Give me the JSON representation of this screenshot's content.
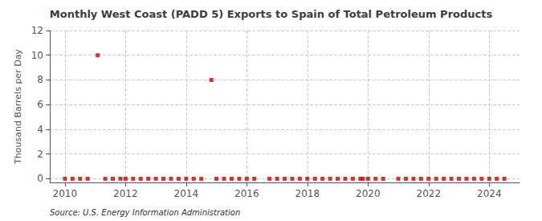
{
  "chart_data": {
    "type": "scatter",
    "title": "Monthly West Coast (PADD 5) Exports to Spain of Total Petroleum Products",
    "ylabel": "Thousand Barrels per Day",
    "source": "Source: U.S. Energy Information Administration",
    "color": "#cc0000",
    "marker": "square",
    "grid": true,
    "xlim": [
      2009.5,
      2025.0
    ],
    "ylim": [
      -0.3,
      12
    ],
    "xticks": [
      2010,
      2012,
      2014,
      2016,
      2018,
      2020,
      2022,
      2024
    ],
    "yticks": [
      0,
      2,
      4,
      6,
      8,
      10,
      12
    ],
    "x": [
      2011.08,
      2014.83,
      2010.0,
      2010.25,
      2010.5,
      2010.75,
      2011.33,
      2011.58,
      2011.83,
      2012.0,
      2012.25,
      2012.5,
      2012.75,
      2013.0,
      2013.25,
      2013.5,
      2013.75,
      2014.0,
      2014.25,
      2014.5,
      2015.0,
      2015.25,
      2015.5,
      2015.75,
      2016.0,
      2016.25,
      2016.75,
      2017.0,
      2017.25,
      2017.5,
      2017.75,
      2018.0,
      2018.25,
      2018.5,
      2018.75,
      2019.0,
      2019.25,
      2019.5,
      2019.75,
      2019.83,
      2020.0,
      2020.25,
      2020.5,
      2021.0,
      2021.25,
      2021.5,
      2021.75,
      2022.0,
      2022.25,
      2022.5,
      2022.75,
      2023.0,
      2023.25,
      2023.5,
      2023.75,
      2024.0,
      2024.25,
      2024.5
    ],
    "values": [
      10.0,
      8.0,
      0.0,
      0.0,
      0.0,
      0.0,
      0.0,
      0.0,
      0.0,
      0.0,
      0.0,
      0.0,
      0.0,
      0.0,
      0.0,
      0.0,
      0.0,
      0.0,
      0.0,
      0.0,
      0.0,
      0.0,
      0.0,
      0.0,
      0.0,
      0.0,
      0.0,
      0.0,
      0.0,
      0.0,
      0.0,
      0.0,
      0.0,
      0.0,
      0.0,
      0.0,
      0.0,
      0.0,
      0.0,
      0.0,
      0.0,
      0.0,
      0.0,
      0.0,
      0.0,
      0.0,
      0.0,
      0.0,
      0.0,
      0.0,
      0.0,
      0.0,
      0.0,
      0.0,
      0.0,
      0.0,
      0.0,
      0.0
    ]
  }
}
